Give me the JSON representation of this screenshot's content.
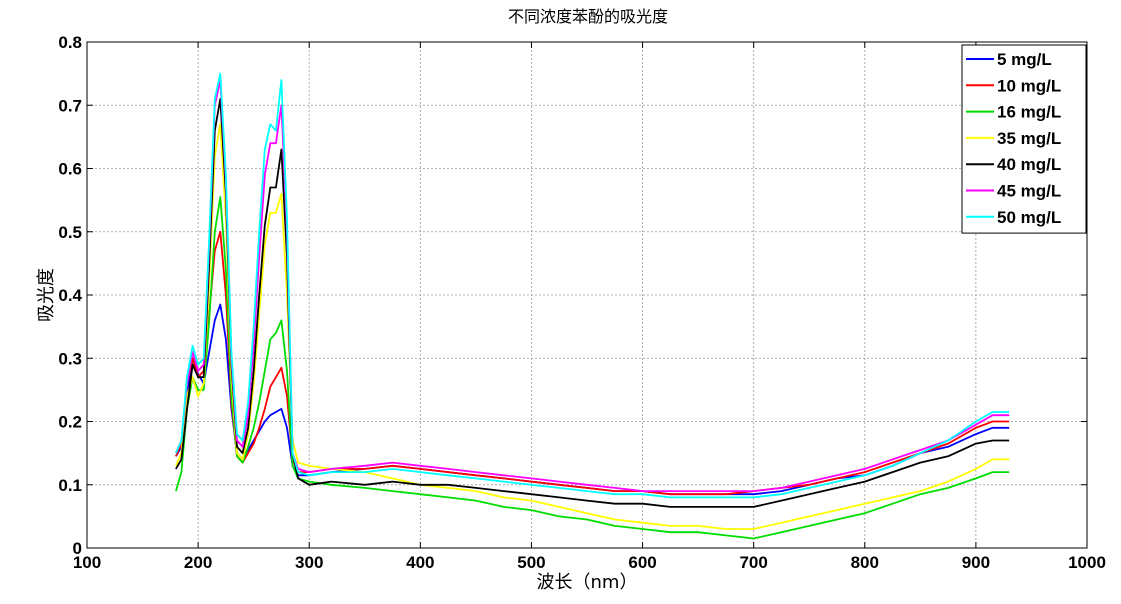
{
  "chart_data": {
    "type": "line",
    "title": "不同浓度苯酚的吸光度",
    "xlabel": "波长（nm）",
    "ylabel": "吸光度",
    "xlim": [
      100,
      1000
    ],
    "ylim": [
      0,
      0.8
    ],
    "xticks": [
      "100",
      "200",
      "300",
      "400",
      "500",
      "600",
      "700",
      "800",
      "900",
      "1000"
    ],
    "yticks": [
      "0",
      "0.1",
      "0.2",
      "0.3",
      "0.4",
      "0.5",
      "0.6",
      "0.7",
      "0.8"
    ],
    "grid": true,
    "legend_position": "top-right",
    "x": [
      180,
      185,
      190,
      195,
      200,
      205,
      210,
      215,
      220,
      225,
      230,
      235,
      240,
      245,
      250,
      255,
      260,
      265,
      270,
      275,
      280,
      285,
      290,
      300,
      320,
      350,
      375,
      400,
      425,
      450,
      475,
      500,
      525,
      550,
      575,
      600,
      625,
      650,
      675,
      700,
      725,
      750,
      775,
      800,
      825,
      850,
      875,
      900,
      915,
      930
    ],
    "series": [
      {
        "name": "5 mg/L",
        "color": "#0000ff",
        "values": [
          0.145,
          0.16,
          0.24,
          0.3,
          0.275,
          0.26,
          0.31,
          0.36,
          0.385,
          0.33,
          0.22,
          0.15,
          0.14,
          0.155,
          0.17,
          0.185,
          0.2,
          0.21,
          0.215,
          0.22,
          0.19,
          0.13,
          0.115,
          0.115,
          0.12,
          0.125,
          0.13,
          0.125,
          0.12,
          0.115,
          0.11,
          0.105,
          0.1,
          0.095,
          0.09,
          0.09,
          0.085,
          0.085,
          0.085,
          0.085,
          0.09,
          0.1,
          0.11,
          0.115,
          0.13,
          0.15,
          0.16,
          0.18,
          0.19,
          0.19
        ]
      },
      {
        "name": "10 mg/L",
        "color": "#ff0000",
        "values": [
          0.145,
          0.165,
          0.26,
          0.3,
          0.27,
          0.28,
          0.37,
          0.47,
          0.5,
          0.4,
          0.23,
          0.145,
          0.135,
          0.15,
          0.165,
          0.19,
          0.22,
          0.255,
          0.27,
          0.285,
          0.24,
          0.14,
          0.12,
          0.12,
          0.125,
          0.125,
          0.13,
          0.125,
          0.12,
          0.115,
          0.11,
          0.105,
          0.1,
          0.095,
          0.09,
          0.09,
          0.085,
          0.085,
          0.085,
          0.09,
          0.095,
          0.1,
          0.11,
          0.12,
          0.135,
          0.15,
          0.165,
          0.19,
          0.2,
          0.2
        ]
      },
      {
        "name": "16 mg/L",
        "color": "#00dd00",
        "values": [
          0.09,
          0.12,
          0.22,
          0.27,
          0.25,
          0.25,
          0.36,
          0.5,
          0.555,
          0.44,
          0.24,
          0.145,
          0.135,
          0.16,
          0.19,
          0.23,
          0.28,
          0.33,
          0.34,
          0.36,
          0.28,
          0.13,
          0.11,
          0.105,
          0.1,
          0.095,
          0.09,
          0.085,
          0.08,
          0.075,
          0.065,
          0.06,
          0.05,
          0.045,
          0.035,
          0.03,
          0.025,
          0.025,
          0.02,
          0.015,
          0.025,
          0.035,
          0.045,
          0.055,
          0.07,
          0.085,
          0.095,
          0.11,
          0.12,
          0.12
        ]
      },
      {
        "name": "35 mg/L",
        "color": "#ffff00",
        "values": [
          0.13,
          0.15,
          0.24,
          0.27,
          0.24,
          0.26,
          0.42,
          0.62,
          0.67,
          0.52,
          0.27,
          0.15,
          0.14,
          0.18,
          0.26,
          0.37,
          0.48,
          0.53,
          0.53,
          0.56,
          0.4,
          0.17,
          0.135,
          0.13,
          0.125,
          0.12,
          0.11,
          0.1,
          0.095,
          0.09,
          0.08,
          0.075,
          0.065,
          0.055,
          0.045,
          0.04,
          0.035,
          0.035,
          0.03,
          0.03,
          0.04,
          0.05,
          0.06,
          0.07,
          0.08,
          0.09,
          0.105,
          0.125,
          0.14,
          0.14
        ]
      },
      {
        "name": "40 mg/L",
        "color": "#000000",
        "values": [
          0.125,
          0.14,
          0.22,
          0.29,
          0.27,
          0.27,
          0.45,
          0.66,
          0.71,
          0.56,
          0.29,
          0.16,
          0.15,
          0.19,
          0.28,
          0.4,
          0.51,
          0.57,
          0.57,
          0.63,
          0.46,
          0.15,
          0.11,
          0.1,
          0.105,
          0.1,
          0.105,
          0.1,
          0.1,
          0.095,
          0.09,
          0.085,
          0.08,
          0.075,
          0.07,
          0.07,
          0.065,
          0.065,
          0.065,
          0.065,
          0.075,
          0.085,
          0.095,
          0.105,
          0.12,
          0.135,
          0.145,
          0.165,
          0.17,
          0.17
        ]
      },
      {
        "name": "45 mg/L",
        "color": "#ff00ff",
        "values": [
          0.15,
          0.17,
          0.26,
          0.31,
          0.28,
          0.29,
          0.48,
          0.7,
          0.74,
          0.58,
          0.3,
          0.17,
          0.16,
          0.21,
          0.32,
          0.46,
          0.59,
          0.64,
          0.64,
          0.7,
          0.5,
          0.15,
          0.125,
          0.12,
          0.125,
          0.13,
          0.135,
          0.13,
          0.125,
          0.12,
          0.115,
          0.11,
          0.105,
          0.1,
          0.095,
          0.09,
          0.09,
          0.09,
          0.09,
          0.09,
          0.095,
          0.105,
          0.115,
          0.125,
          0.14,
          0.155,
          0.17,
          0.195,
          0.21,
          0.21
        ]
      },
      {
        "name": "50 mg/L",
        "color": "#00ffff",
        "values": [
          0.15,
          0.17,
          0.27,
          0.32,
          0.29,
          0.3,
          0.49,
          0.71,
          0.75,
          0.59,
          0.31,
          0.18,
          0.17,
          0.23,
          0.35,
          0.5,
          0.63,
          0.67,
          0.66,
          0.74,
          0.52,
          0.15,
          0.12,
          0.115,
          0.12,
          0.12,
          0.125,
          0.12,
          0.115,
          0.11,
          0.105,
          0.1,
          0.095,
          0.09,
          0.085,
          0.085,
          0.08,
          0.08,
          0.08,
          0.08,
          0.085,
          0.095,
          0.105,
          0.115,
          0.13,
          0.15,
          0.17,
          0.2,
          0.215,
          0.215
        ]
      }
    ]
  }
}
